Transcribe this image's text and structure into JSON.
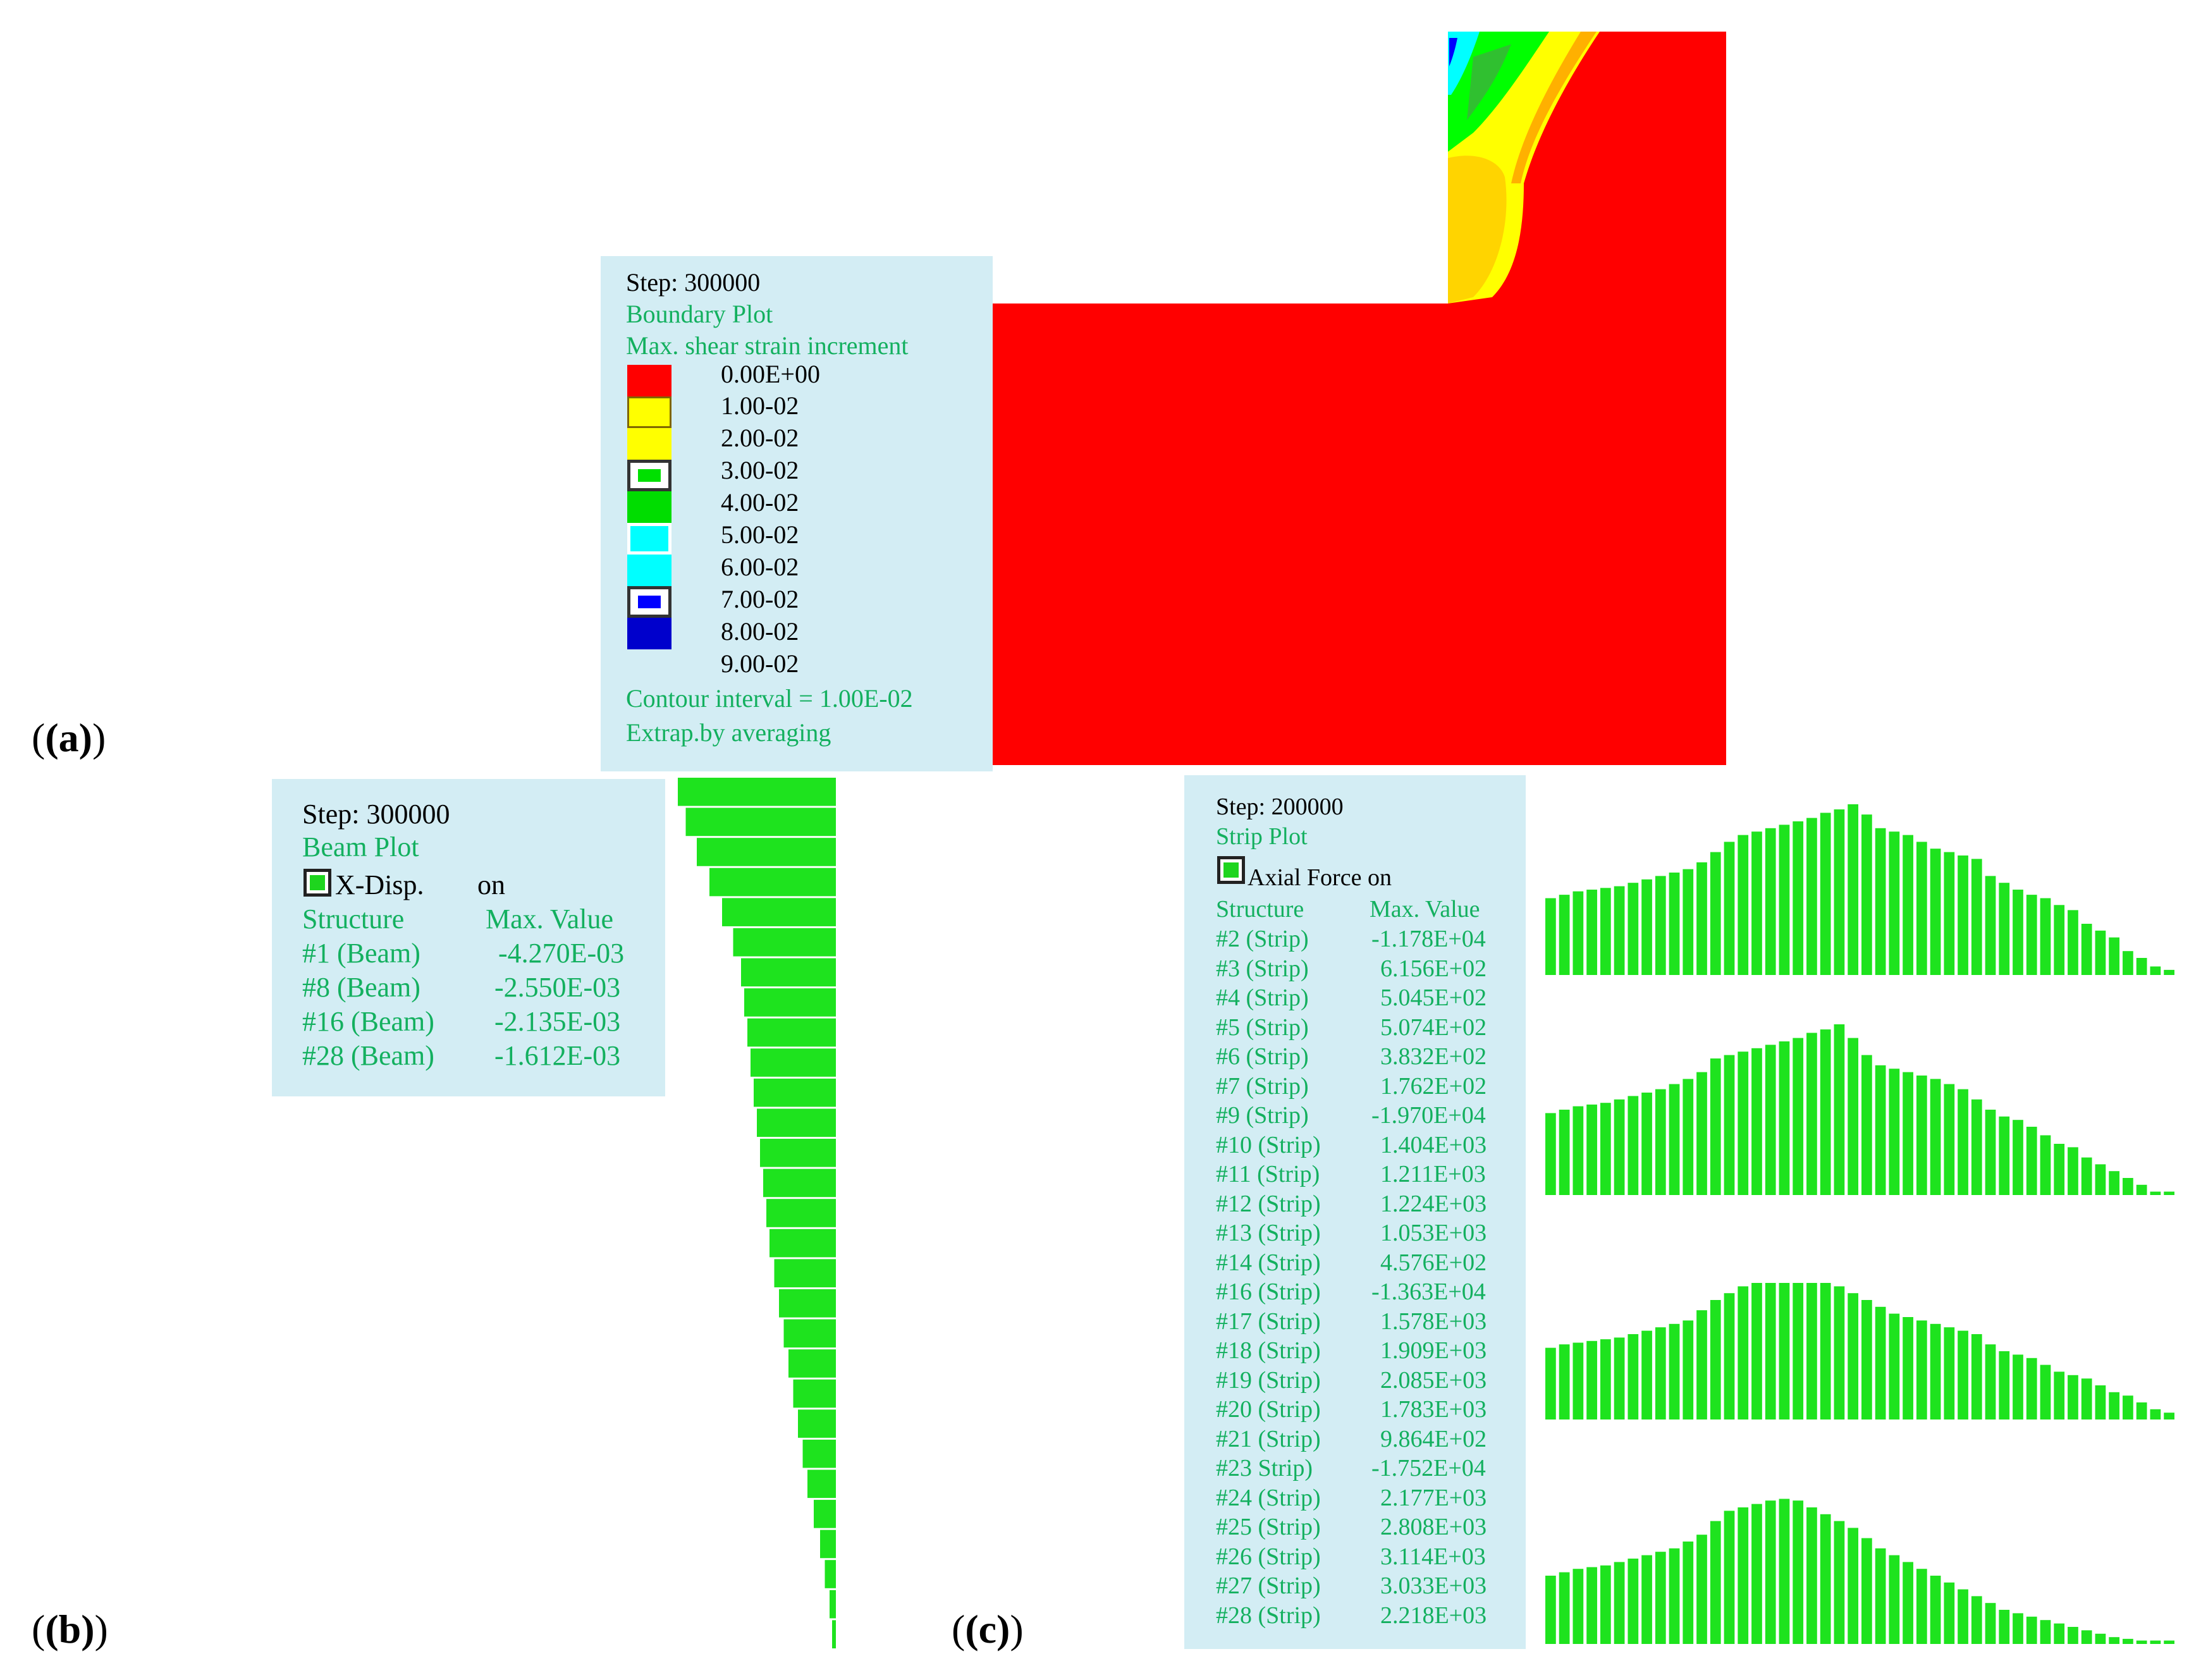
{
  "panel_labels": [
    "(a)",
    "(b)",
    "(c)"
  ],
  "panel_a": {
    "step": "Step: 300000",
    "plot_name": "Boundary Plot",
    "variable": "Max. shear strain increment",
    "contours": [
      {
        "label": "0.00E+00",
        "color": "#ff0000"
      },
      {
        "label": "1.00-02",
        "color": "#ffff00"
      },
      {
        "label": "2.00-02",
        "color": "#ffff00"
      },
      {
        "label": "3.00-02",
        "color": "#00ff00"
      },
      {
        "label": "4.00-02",
        "color": "#00dd00"
      },
      {
        "label": "5.00-02",
        "color": "#00ffff"
      },
      {
        "label": "6.00-02",
        "color": "#00ffff"
      },
      {
        "label": "7.00-02",
        "color": "#0000ff"
      },
      {
        "label": "8.00-02",
        "color": "#0000cc"
      },
      {
        "label": "9.00-02",
        "color": ""
      }
    ],
    "interval": "Contour interval = 1.00E-02",
    "extrap": "Extrap.by averaging"
  },
  "panel_b": {
    "step": "Step: 300000",
    "plot_name": "Beam Plot",
    "item": "X-Disp.",
    "item_state": "on",
    "header_structure": "Structure",
    "header_value": "Max. Value",
    "rows": [
      {
        "structure": "#1 (Beam)",
        "value": "-4.270E-03"
      },
      {
        "structure": "#8 (Beam)",
        "value": "-2.550E-03"
      },
      {
        "structure": "#16 (Beam)",
        "value": "-2.135E-03"
      },
      {
        "structure": "#28 (Beam)",
        "value": "-1.612E-03"
      }
    ],
    "displacement_profile": [
      1.0,
      0.95,
      0.88,
      0.8,
      0.72,
      0.65,
      0.6,
      0.58,
      0.56,
      0.54,
      0.52,
      0.5,
      0.48,
      0.46,
      0.44,
      0.42,
      0.39,
      0.36,
      0.33,
      0.3,
      0.27,
      0.24,
      0.21,
      0.18,
      0.14,
      0.1,
      0.07,
      0.04,
      0.02
    ]
  },
  "panel_c": {
    "step": "Step: 200000",
    "plot_name": "Strip Plot",
    "item": "Axial Force on",
    "header_structure": "Structure",
    "header_value": "Max. Value",
    "rows": [
      {
        "structure": "#2 (Strip)",
        "value": "-1.178E+04"
      },
      {
        "structure": "#3 (Strip)",
        "value": "6.156E+02"
      },
      {
        "structure": "#4 (Strip)",
        "value": "5.045E+02"
      },
      {
        "structure": "#5 (Strip)",
        "value": "5.074E+02"
      },
      {
        "structure": "#6 (Strip)",
        "value": "3.832E+02"
      },
      {
        "structure": "#7 (Strip)",
        "value": "1.762E+02"
      },
      {
        "structure": "#9 (Strip)",
        "value": "-1.970E+04"
      },
      {
        "structure": "#10 (Strip)",
        "value": "1.404E+03"
      },
      {
        "structure": "#11 (Strip)",
        "value": "1.211E+03"
      },
      {
        "structure": "#12 (Strip)",
        "value": "1.224E+03"
      },
      {
        "structure": "#13 (Strip)",
        "value": "1.053E+03"
      },
      {
        "structure": "#14 (Strip)",
        "value": "4.576E+02"
      },
      {
        "structure": "#16 (Strip)",
        "value": "-1.363E+04"
      },
      {
        "structure": "#17 (Strip)",
        "value": "1.578E+03"
      },
      {
        "structure": "#18 (Strip)",
        "value": "1.909E+03"
      },
      {
        "structure": "#19 (Strip)",
        "value": "2.085E+03"
      },
      {
        "structure": "#20 (Strip)",
        "value": "1.783E+03"
      },
      {
        "structure": "#21 (Strip)",
        "value": "9.864E+02"
      },
      {
        "structure": "#23 Strip)",
        "value": "-1.752E+04"
      },
      {
        "structure": "#24 (Strip)",
        "value": "2.177E+03"
      },
      {
        "structure": "#25 (Strip)",
        "value": "2.808E+03"
      },
      {
        "structure": "#26 (Strip)",
        "value": "3.114E+03"
      },
      {
        "structure": "#27 (Strip)",
        "value": "3.033E+03"
      },
      {
        "structure": "#28 (Strip)",
        "value": "2.218E+03"
      }
    ],
    "strip_rows": [
      [
        0.45,
        0.47,
        0.49,
        0.5,
        0.51,
        0.52,
        0.54,
        0.56,
        0.58,
        0.6,
        0.62,
        0.66,
        0.72,
        0.78,
        0.82,
        0.84,
        0.86,
        0.88,
        0.9,
        0.92,
        0.95,
        0.97,
        1.0,
        0.94,
        0.86,
        0.84,
        0.82,
        0.78,
        0.74,
        0.72,
        0.7,
        0.68,
        0.58,
        0.54,
        0.5,
        0.47,
        0.45,
        0.41,
        0.38,
        0.3,
        0.26,
        0.22,
        0.14,
        0.1,
        0.05,
        0.03
      ],
      [
        0.48,
        0.5,
        0.52,
        0.53,
        0.54,
        0.56,
        0.58,
        0.6,
        0.62,
        0.65,
        0.68,
        0.72,
        0.8,
        0.82,
        0.84,
        0.86,
        0.88,
        0.9,
        0.92,
        0.95,
        0.97,
        1.0,
        0.92,
        0.82,
        0.76,
        0.74,
        0.72,
        0.7,
        0.68,
        0.65,
        0.62,
        0.56,
        0.5,
        0.46,
        0.44,
        0.4,
        0.35,
        0.3,
        0.28,
        0.22,
        0.18,
        0.14,
        0.1,
        0.06,
        0.02,
        0.02
      ],
      [
        0.42,
        0.44,
        0.45,
        0.46,
        0.47,
        0.48,
        0.5,
        0.52,
        0.54,
        0.56,
        0.58,
        0.64,
        0.7,
        0.74,
        0.78,
        0.8,
        0.8,
        0.8,
        0.8,
        0.8,
        0.8,
        0.78,
        0.74,
        0.7,
        0.66,
        0.62,
        0.6,
        0.58,
        0.56,
        0.54,
        0.52,
        0.5,
        0.44,
        0.4,
        0.38,
        0.36,
        0.32,
        0.28,
        0.26,
        0.24,
        0.2,
        0.16,
        0.14,
        0.1,
        0.06,
        0.04
      ],
      [
        0.4,
        0.42,
        0.44,
        0.45,
        0.46,
        0.48,
        0.5,
        0.52,
        0.54,
        0.56,
        0.6,
        0.64,
        0.72,
        0.78,
        0.8,
        0.82,
        0.84,
        0.85,
        0.84,
        0.8,
        0.76,
        0.72,
        0.68,
        0.62,
        0.56,
        0.52,
        0.48,
        0.44,
        0.4,
        0.36,
        0.32,
        0.28,
        0.24,
        0.2,
        0.18,
        0.16,
        0.14,
        0.12,
        0.1,
        0.08,
        0.06,
        0.04,
        0.03,
        0.02,
        0.02,
        0.02
      ]
    ]
  }
}
